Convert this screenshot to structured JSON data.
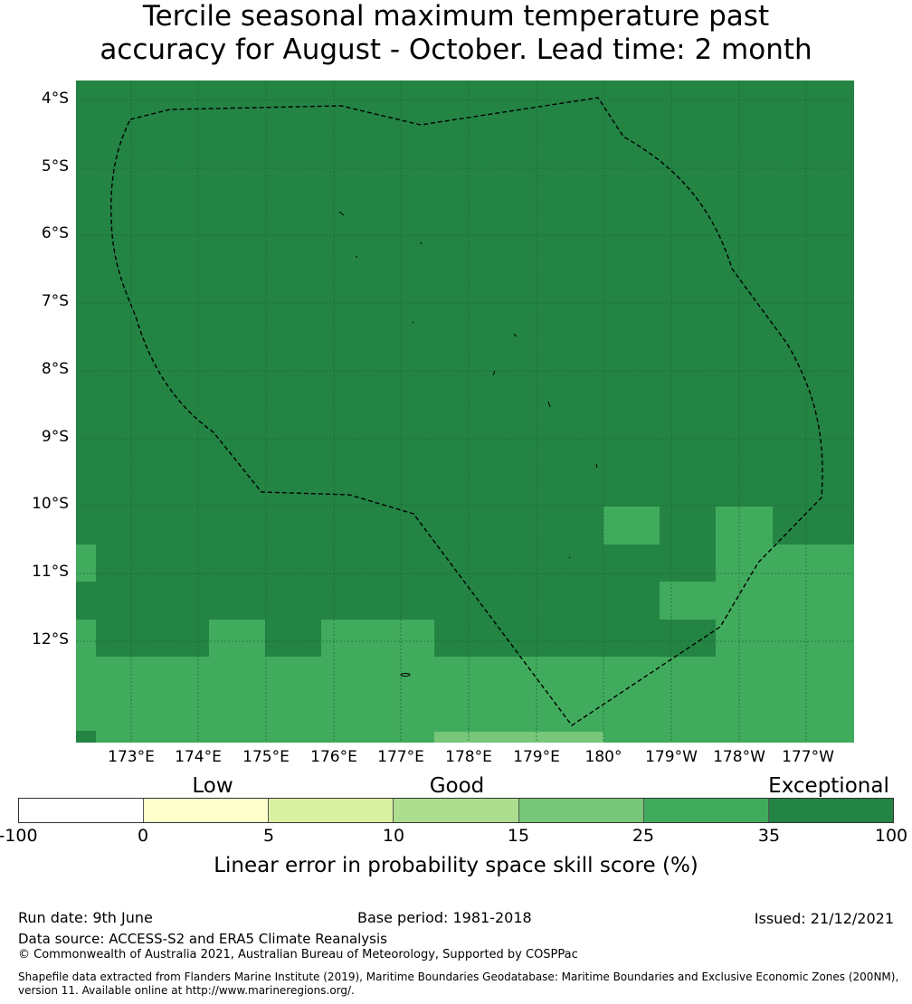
{
  "title": {
    "line1": "Tercile seasonal maximum temperature past",
    "line2": "accuracy for August - October. Lead time: 2 month"
  },
  "lat_labels": [
    "4°S",
    "5°S",
    "6°S",
    "7°S",
    "8°S",
    "9°S",
    "10°S",
    "11°S",
    "12°S"
  ],
  "lon_labels": [
    "173°E",
    "174°E",
    "175°E",
    "176°E",
    "177°E",
    "178°E",
    "179°E",
    "180°",
    "179°W",
    "178°W",
    "177°W"
  ],
  "legend": {
    "categories": [
      "Low",
      "Good",
      "Exceptional"
    ],
    "ticks": [
      "-100",
      "0",
      "5",
      "10",
      "15",
      "25",
      "35",
      "100"
    ],
    "colors": [
      "#ffffff",
      "#ffffcc",
      "#d9f0a3",
      "#addd8e",
      "#78c679",
      "#41ab5d",
      "#238443"
    ],
    "label": "Linear error in probability space skill score (%)"
  },
  "footer": {
    "run_date": "Run date: 9th June",
    "base_period": "Base period: 1981-2018",
    "issued": "Issued: 21/12/2021",
    "data_source": "Data source: ACCESS-S2 and ERA5 Climate Reanalysis",
    "copyright": "© Commonwealth of Australia 2021, Australian Bureau of Meteorology, Supported by COSPPac",
    "shapefile_line1": "Shapefile data extracted from Flanders Marine Institute (2019), Maritime Boundaries Geodatabase: Maritime Boundaries and Exclusive Economic Zones (200NM),",
    "shapefile_line2": "version 11. Available online at http://www.marineregions.org/."
  },
  "map_colors": {
    "exceptional": "#238443",
    "high": "#41ab5d",
    "medium": "#78c679",
    "grid": "#1a6b35",
    "boundary": "#000000"
  }
}
